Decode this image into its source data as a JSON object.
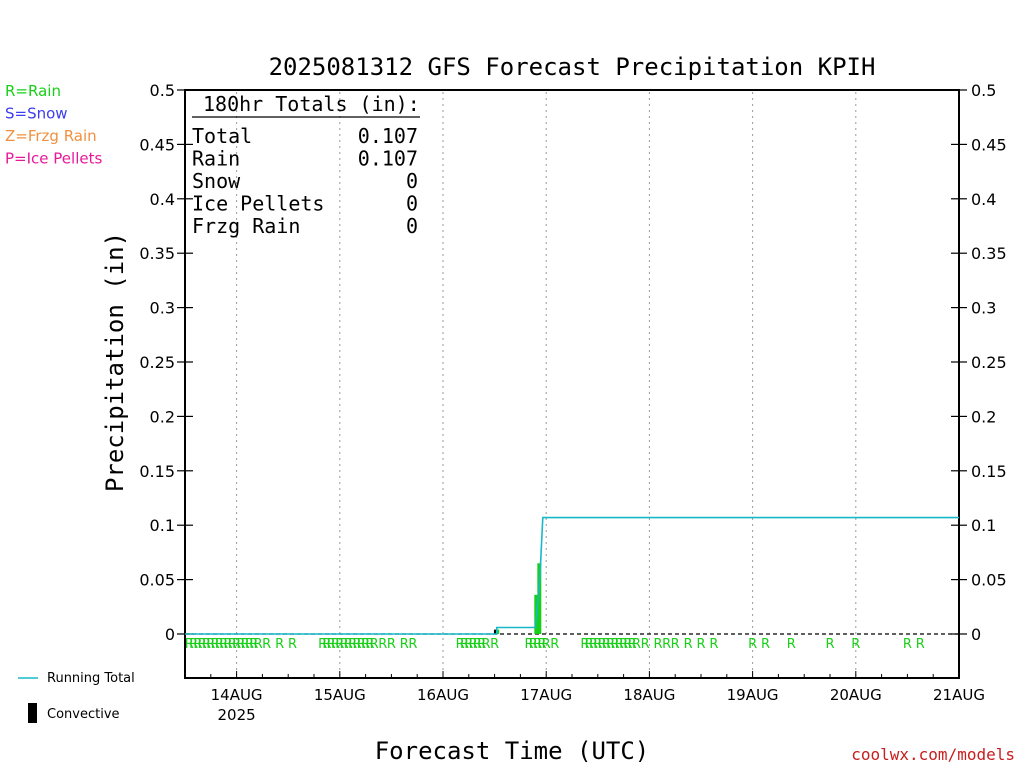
{
  "chart_data": {
    "type": "line",
    "title": "2025081312 GFS Forecast Precipitation KPIH",
    "xlabel": "Forecast Time (UTC)",
    "ylabel": "Precipitation (in)",
    "ylim": [
      0,
      0.5
    ],
    "y_ticks": [
      "0",
      "0.05",
      "0.1",
      "0.15",
      "0.2",
      "0.25",
      "0.3",
      "0.35",
      "0.4",
      "0.45",
      "0.5"
    ],
    "x_unit": "forecast hour",
    "xlim": [
      0,
      180
    ],
    "x_ticks": [
      {
        "hour": 12,
        "label": "14AUG",
        "sublabel": "2025"
      },
      {
        "hour": 36,
        "label": "15AUG",
        "sublabel": ""
      },
      {
        "hour": 60,
        "label": "16AUG",
        "sublabel": ""
      },
      {
        "hour": 84,
        "label": "17AUG",
        "sublabel": ""
      },
      {
        "hour": 108,
        "label": "18AUG",
        "sublabel": ""
      },
      {
        "hour": 132,
        "label": "19AUG",
        "sublabel": ""
      },
      {
        "hour": 156,
        "label": "20AUG",
        "sublabel": ""
      },
      {
        "hour": 180,
        "label": "21AUG",
        "sublabel": ""
      }
    ],
    "grid": "vertical dotted at day boundaries",
    "series": [
      {
        "name": "Running Total",
        "color": "#17b8c8",
        "points": [
          [
            0,
            0
          ],
          [
            72.5,
            0
          ],
          [
            72.5,
            0.006
          ],
          [
            81.5,
            0.006
          ],
          [
            82.5,
            0.05
          ],
          [
            83.2,
            0.107
          ],
          [
            180,
            0.107
          ]
        ]
      },
      {
        "name": "Rain",
        "color": "#17d017",
        "bars": [
          [
            72.6,
            0.004
          ],
          [
            81.7,
            0.036
          ],
          [
            82.4,
            0.065
          ]
        ]
      },
      {
        "name": "Convective",
        "color": "#000000",
        "bars": [
          [
            72.2,
            0.004
          ]
        ]
      }
    ],
    "precip_type_markers": {
      "symbol": "R",
      "hours": [
        1,
        2,
        3,
        4,
        5,
        6,
        7,
        8,
        9,
        10,
        11,
        12,
        13,
        14,
        15,
        16,
        17,
        19,
        22,
        25,
        32,
        33,
        34,
        35,
        36,
        37,
        38,
        39,
        40,
        41,
        42,
        43,
        44,
        46,
        48,
        51,
        53,
        64,
        65,
        66,
        67,
        68,
        69,
        70,
        72,
        80,
        81,
        82,
        83,
        84,
        86,
        93,
        94,
        95,
        96,
        97,
        98,
        99,
        100,
        101,
        102,
        103,
        104,
        105,
        107,
        110,
        112,
        114,
        117,
        120,
        123,
        132,
        135,
        141,
        150,
        156,
        168,
        171
      ]
    },
    "totals": {
      "heading": "180hr Totals (in):",
      "rows": [
        {
          "label": "Total",
          "value": "0.107"
        },
        {
          "label": "Rain",
          "value": "0.107"
        },
        {
          "label": "Snow",
          "value": "0"
        },
        {
          "label": "Ice Pellets",
          "value": "0"
        },
        {
          "label": "Frzg Rain",
          "value": "0"
        }
      ]
    },
    "type_key": [
      {
        "text": "R=Rain",
        "color": "#17d017"
      },
      {
        "text": "S=Snow",
        "color": "#3c3cf0"
      },
      {
        "text": "Z=Frzg Rain",
        "color": "#f09040"
      },
      {
        "text": "P=Ice Pellets",
        "color": "#e8189a"
      }
    ],
    "legend": {
      "running_total": "Running Total",
      "convective": "Convective"
    },
    "credit": "coolwx.com/models"
  }
}
